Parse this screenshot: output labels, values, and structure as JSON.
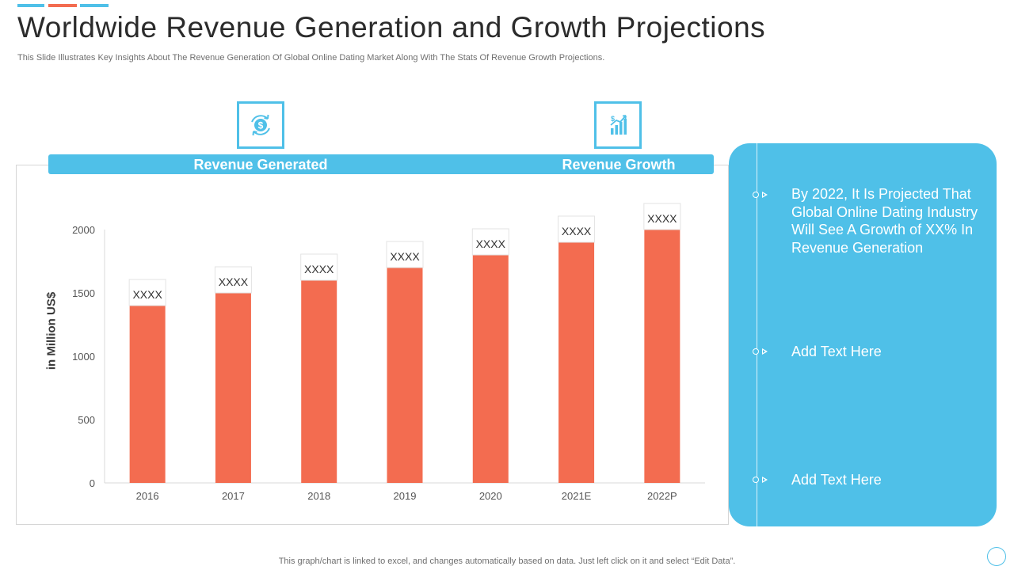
{
  "title": "Worldwide Revenue Generation and Growth Projections",
  "subtitle": "This Slide Illustrates Key Insights About The Revenue Generation Of Global Online Dating Market Along With The Stats Of Revenue Growth Projections.",
  "header": {
    "revenue_generated_label": "Revenue Generated",
    "revenue_growth_label": "Revenue Growth"
  },
  "icons": [
    "revenue-cycle-icon",
    "growth-chart-icon"
  ],
  "colors": {
    "accent": "#4fc0e8",
    "bar": "#f36c50",
    "panel_text": "#ffffff"
  },
  "chart_data": {
    "type": "bar",
    "title": "",
    "xlabel": "",
    "ylabel": "in Million US$",
    "ylim": [
      0,
      2000
    ],
    "yticks": [
      0,
      500,
      1000,
      1500,
      2000
    ],
    "categories": [
      "2016",
      "2017",
      "2018",
      "2019",
      "2020",
      "2021E",
      "2022P"
    ],
    "values": [
      1400,
      1500,
      1600,
      1700,
      1800,
      1900,
      2000
    ],
    "data_labels": [
      "XXXX",
      "XXXX",
      "XXXX",
      "XXXX",
      "XXXX",
      "XXXX",
      "XXXX"
    ],
    "grid": false,
    "legend": "none"
  },
  "side_panel": {
    "items": [
      "By 2022, It Is Projected That Global Online Dating Industry Will See A Growth of XX% In Revenue Generation",
      "Add Text Here",
      "Add Text Here"
    ]
  },
  "footnote": "This graph/chart is linked to excel,  and changes automatically based on data. Just left click on it and select “Edit Data”."
}
